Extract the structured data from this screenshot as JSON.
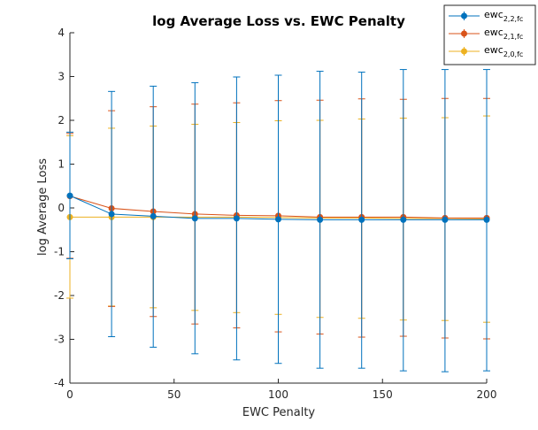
{
  "chart_data": {
    "type": "line",
    "title": "log Average Loss vs. EWC Penalty",
    "xlabel": "EWC Penalty",
    "ylabel": "log Average Loss",
    "xlim": [
      0,
      200
    ],
    "ylim": [
      -4,
      4
    ],
    "xticks": [
      0,
      50,
      100,
      150,
      200
    ],
    "yticks": [
      -4,
      -3,
      -2,
      -1,
      0,
      1,
      2,
      3,
      4
    ],
    "grid": false,
    "legend_position": "top-right",
    "x": [
      0,
      20,
      40,
      60,
      80,
      100,
      120,
      140,
      160,
      180,
      200
    ],
    "series": [
      {
        "name": "ewc",
        "subscript": "2,2,fc",
        "color": "#0072BD",
        "values": [
          0.28,
          -0.14,
          -0.19,
          -0.24,
          -0.24,
          -0.26,
          -0.27,
          -0.27,
          -0.27,
          -0.27,
          -0.27
        ],
        "upper": [
          1.73,
          2.66,
          2.78,
          2.86,
          2.99,
          3.03,
          3.12,
          3.1,
          3.16,
          3.16,
          3.16
        ],
        "lower": [
          -1.16,
          -2.94,
          -3.18,
          -3.33,
          -3.47,
          -3.55,
          -3.66,
          -3.66,
          -3.72,
          -3.74,
          -3.72
        ]
      },
      {
        "name": "ewc",
        "subscript": "2,1,fc",
        "color": "#D95319",
        "values": [
          0.27,
          -0.01,
          -0.08,
          -0.14,
          -0.17,
          -0.18,
          -0.21,
          -0.21,
          -0.21,
          -0.23,
          -0.23
        ],
        "upper": [
          1.7,
          2.22,
          2.31,
          2.37,
          2.4,
          2.45,
          2.46,
          2.49,
          2.48,
          2.5,
          2.5
        ],
        "lower": [
          -1.15,
          -2.25,
          -2.48,
          -2.65,
          -2.74,
          -2.83,
          -2.88,
          -2.95,
          -2.93,
          -2.97,
          -2.99
        ]
      },
      {
        "name": "ewc",
        "subscript": "2,0,fc",
        "color": "#EDB120",
        "values": [
          -0.21,
          -0.21,
          -0.21,
          -0.21,
          -0.21,
          -0.22,
          -0.23,
          -0.23,
          -0.24,
          -0.24,
          -0.25
        ],
        "upper": [
          1.65,
          1.82,
          1.87,
          1.91,
          1.95,
          1.99,
          2.0,
          2.03,
          2.05,
          2.06,
          2.1
        ],
        "lower": [
          -2.06,
          -2.24,
          -2.28,
          -2.34,
          -2.39,
          -2.43,
          -2.5,
          -2.52,
          -2.56,
          -2.57,
          -2.61
        ]
      }
    ]
  }
}
